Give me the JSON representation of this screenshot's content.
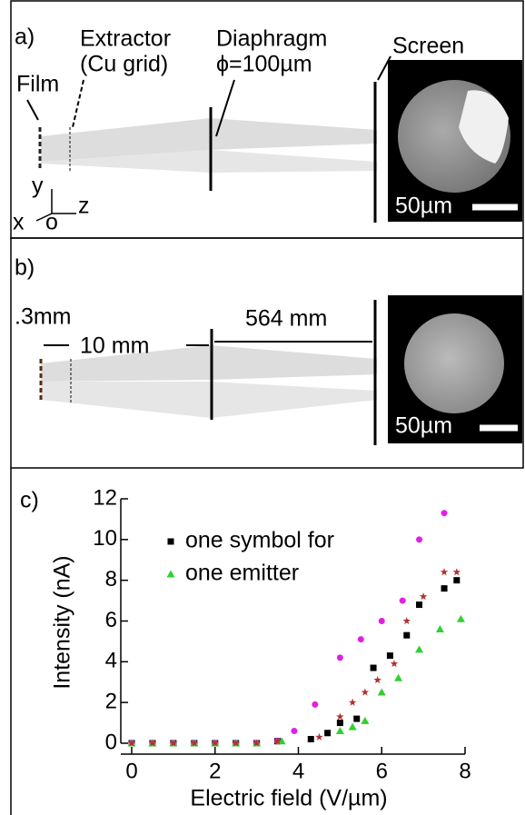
{
  "panel_a": {
    "label": "a)",
    "film": "Film",
    "extractor": [
      "Extractor",
      "(Cu grid)"
    ],
    "diaphragm": [
      "Diaphragm",
      "ϕ=100µm"
    ],
    "screen": "Screen",
    "scale_bar": "50µm",
    "axes": {
      "y": "y",
      "x": "x",
      "o": "o",
      "z": "z"
    }
  },
  "panel_b": {
    "label": "b)",
    "d1": ".3mm",
    "d2": "10 mm",
    "d3": "564 mm",
    "scale_bar": "50µm"
  },
  "chart_data": {
    "type": "scatter",
    "panel_label": "c)",
    "xlabel": "Electric field (V/µm)",
    "ylabel": "Intensity (nA)",
    "xlim": [
      0,
      8
    ],
    "ylim": [
      0,
      12
    ],
    "xticks": [
      0,
      2,
      4,
      6,
      8
    ],
    "yticks": [
      0,
      2,
      4,
      6,
      8,
      10,
      12
    ],
    "legend_lines": [
      "one symbol for",
      "one emitter"
    ],
    "series": [
      {
        "marker": "square",
        "color": "#000000",
        "x": [
          0,
          0.5,
          1,
          1.5,
          2,
          2.5,
          3,
          3.5,
          4.3,
          4.7,
          5.0,
          5.4,
          5.8,
          6.2,
          6.6,
          6.9,
          7.5,
          7.8
        ],
        "values": [
          0,
          0,
          0,
          0,
          0,
          0,
          0,
          0.1,
          0.2,
          0.5,
          1.0,
          1.2,
          3.7,
          4.3,
          5.3,
          6.8,
          7.6,
          8.0
        ]
      },
      {
        "marker": "circle",
        "color": "#e020e0",
        "x": [
          0,
          0.5,
          1,
          1.5,
          2,
          2.5,
          3,
          3.5,
          3.9,
          4.4,
          5.0,
          5.5,
          6.0,
          6.5,
          6.9,
          7.5
        ],
        "values": [
          0,
          0,
          0,
          0,
          0,
          0,
          0,
          0.1,
          0.6,
          1.9,
          4.2,
          5.1,
          6.0,
          7.0,
          10.0,
          11.3
        ]
      },
      {
        "marker": "triangle",
        "color": "#30d030",
        "x": [
          0,
          0.5,
          1,
          1.5,
          2,
          2.5,
          3,
          3.6,
          5.0,
          5.3,
          5.6,
          6.0,
          6.4,
          6.9,
          7.4,
          7.9
        ],
        "values": [
          0,
          0,
          0,
          0,
          0,
          0,
          0,
          0.1,
          0.6,
          0.8,
          1.1,
          2.5,
          3.2,
          4.6,
          5.6,
          6.1
        ]
      },
      {
        "marker": "star",
        "color": "#b03030",
        "x": [
          0,
          0.5,
          1,
          1.5,
          2,
          2.5,
          3,
          3.5,
          4.5,
          5.0,
          5.3,
          5.6,
          5.9,
          6.3,
          6.6,
          7.0,
          7.5,
          7.8
        ],
        "values": [
          0,
          0,
          0,
          0,
          0,
          0,
          0,
          0.1,
          0.3,
          1.3,
          2.0,
          2.5,
          3.1,
          3.9,
          6.0,
          7.2,
          8.4,
          8.4
        ]
      }
    ]
  }
}
